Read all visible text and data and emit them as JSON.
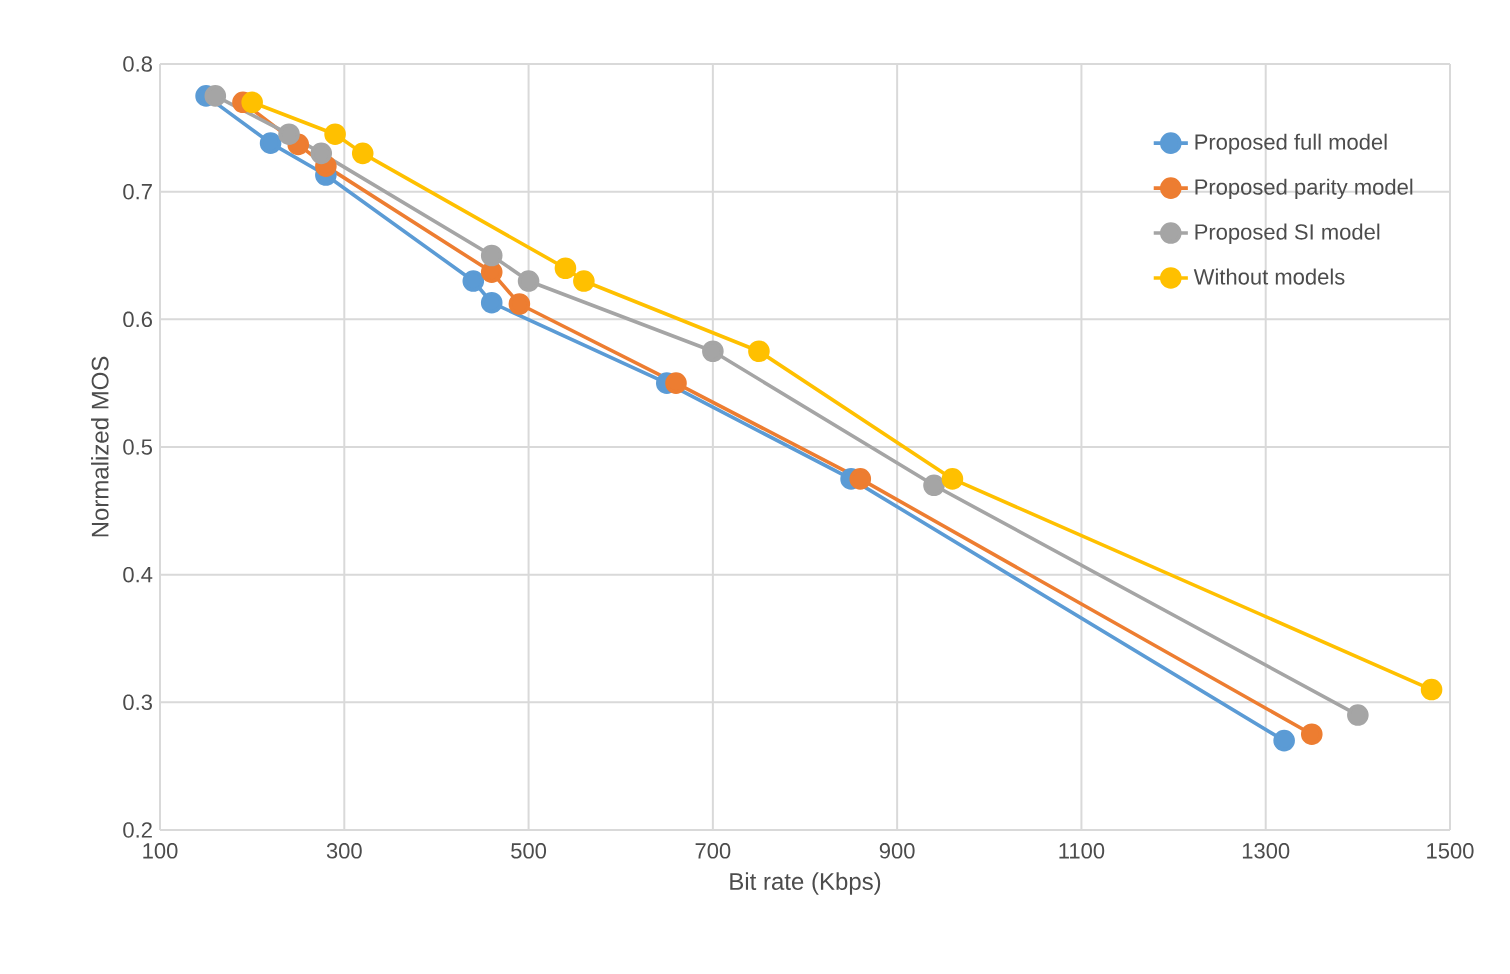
{
  "chart_data": {
    "type": "line",
    "xlabel": "Bit rate (Kbps)",
    "ylabel": "Normalized MOS",
    "xlim": [
      100,
      1500
    ],
    "xticks": [
      100,
      300,
      500,
      700,
      900,
      1100,
      1300,
      1500
    ],
    "ylim": [
      0.2,
      0.8
    ],
    "yticks": [
      0.2,
      0.3,
      0.4,
      0.5,
      0.6,
      0.7,
      0.8
    ],
    "grid": true,
    "legend": "top right",
    "marker": "circle",
    "line_style": "solid",
    "series": [
      {
        "name": "Proposed full model",
        "color": "#5b9bd5",
        "x": [
          150,
          220,
          280,
          440,
          460,
          650,
          850,
          1320
        ],
        "values": [
          0.775,
          0.738,
          0.713,
          0.63,
          0.613,
          0.55,
          0.475,
          0.27
        ]
      },
      {
        "name": "Proposed parity model",
        "color": "#ed7d31",
        "x": [
          190,
          250,
          280,
          460,
          490,
          660,
          860,
          1350
        ],
        "values": [
          0.77,
          0.737,
          0.72,
          0.637,
          0.612,
          0.55,
          0.475,
          0.275
        ]
      },
      {
        "name": "Proposed SI model",
        "color": "#a5a5a5",
        "x": [
          160,
          240,
          275,
          460,
          500,
          700,
          940,
          1400
        ],
        "values": [
          0.775,
          0.745,
          0.73,
          0.65,
          0.63,
          0.575,
          0.47,
          0.29
        ]
      },
      {
        "name": "Without models",
        "color": "#ffc000",
        "x": [
          200,
          290,
          320,
          540,
          560,
          750,
          960,
          1480
        ],
        "values": [
          0.77,
          0.745,
          0.73,
          0.64,
          0.63,
          0.575,
          0.475,
          0.31
        ]
      }
    ]
  }
}
